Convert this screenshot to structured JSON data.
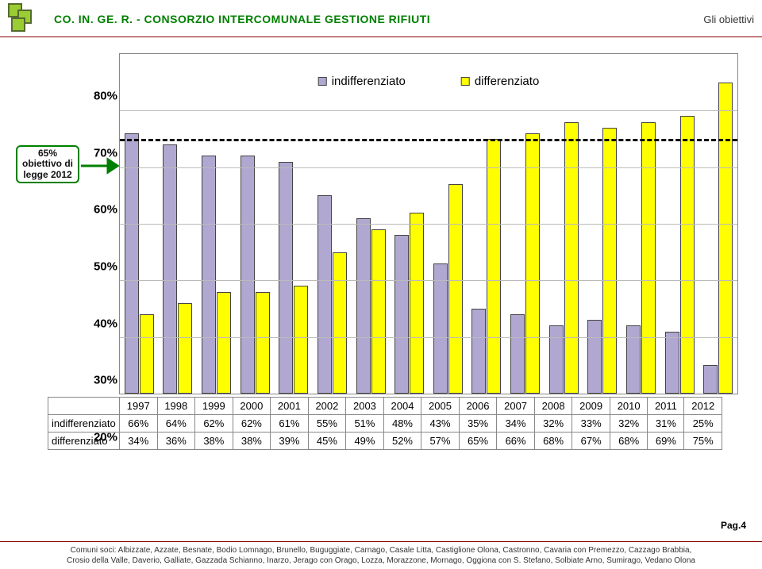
{
  "header": {
    "title": "CO. IN. GE. R. - CONSORZIO INTERCOMUNALE GESTIONE RIFIUTI",
    "subtitle": "Gli obiettivi"
  },
  "callout": {
    "line1": "65%",
    "line2": "obiettivo di",
    "line3": "legge 2012"
  },
  "legend": {
    "ind": "indifferenziato",
    "dif": "differenziato"
  },
  "chart": {
    "type": "bar",
    "ymin": 20,
    "ymax": 80,
    "ytick_step": 10,
    "target": 65,
    "colors": {
      "ind": "#b0a8d0",
      "dif": "#ffff00",
      "grid": "#bbbbbb",
      "border": "#444444",
      "bg": "#ffffff"
    },
    "years": [
      "1997",
      "1998",
      "1999",
      "2000",
      "2001",
      "2002",
      "2003",
      "2004",
      "2005",
      "2006",
      "2007",
      "2008",
      "2009",
      "2010",
      "2011",
      "2012"
    ],
    "ind": [
      66,
      64,
      62,
      62,
      61,
      55,
      51,
      48,
      43,
      35,
      34,
      32,
      33,
      32,
      31,
      25
    ],
    "dif": [
      34,
      36,
      38,
      38,
      39,
      45,
      49,
      52,
      57,
      65,
      66,
      68,
      67,
      68,
      69,
      75
    ]
  },
  "table": {
    "row1_label": "indifferenziato",
    "row2_label": "differenziato"
  },
  "page": "Pag.4",
  "footer": {
    "line1": "Comuni soci: Albizzate, Azzate, Besnate, Bodio Lomnago, Brunello, Buguggiate, Carnago, Casale Litta, Castiglione Olona, Castronno, Cavaria con Premezzo, Cazzago Brabbia,",
    "line2": "Crosio della Valle, Daverio, Galliate, Gazzada Schianno, Inarzo, Jerago con Orago, Lozza, Morazzone, Mornago, Oggiona con S. Stefano, Solbiate Arno, Sumirago, Vedano Olona"
  }
}
